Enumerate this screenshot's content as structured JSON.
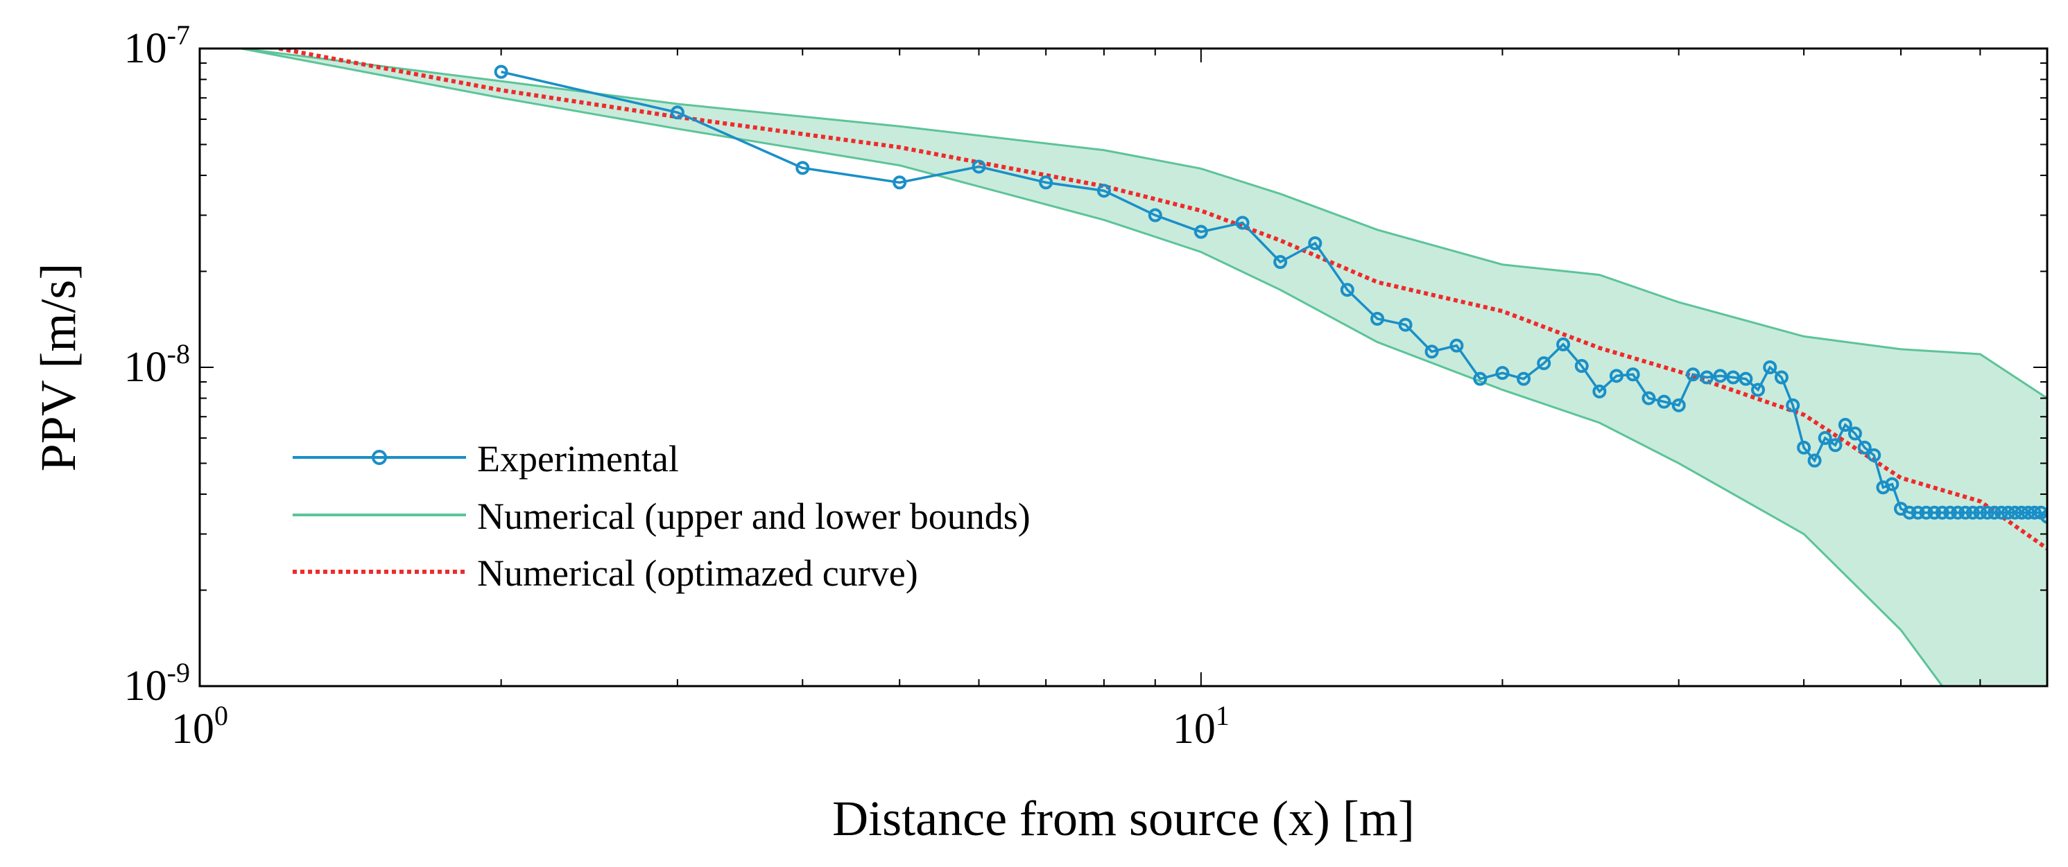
{
  "chart_data": {
    "type": "line",
    "title": "",
    "xlabel": "Distance from source (x) [m]",
    "ylabel": "PPV [m/s]",
    "xscale": "log",
    "yscale": "log",
    "xlim": [
      1,
      70
    ],
    "ylim": [
      1e-09,
      1e-07
    ],
    "x_ticks": [
      {
        "value": 1,
        "base": "10",
        "exp": "0"
      },
      {
        "value": 10,
        "base": "10",
        "exp": "1"
      }
    ],
    "y_ticks": [
      {
        "value": 1e-07,
        "base": "10",
        "exp": "-7"
      },
      {
        "value": 1e-08,
        "base": "10",
        "exp": "-8"
      },
      {
        "value": 1e-09,
        "base": "10",
        "exp": "-9"
      }
    ],
    "legend_position": "bottom-left",
    "series": [
      {
        "name": "Experimental",
        "role": "experimental",
        "color": "#1a8fc7",
        "x": [
          2,
          3,
          4,
          5,
          6,
          7,
          8,
          9,
          10,
          11,
          12,
          13,
          14,
          15,
          16,
          17,
          18,
          19,
          20,
          21,
          22,
          23,
          24,
          25,
          26,
          27,
          28,
          29,
          30,
          31,
          32,
          33,
          34,
          35,
          36,
          37,
          38,
          39,
          40,
          41,
          42,
          43,
          44,
          45,
          46,
          47,
          48,
          49,
          50,
          51,
          52,
          53,
          54,
          55,
          56,
          57,
          58,
          59,
          60,
          61,
          62,
          63,
          64,
          65,
          66,
          67,
          68,
          69,
          70
        ],
        "y": [
          8.45e-08,
          6.3e-08,
          4.22e-08,
          3.8e-08,
          4.26e-08,
          3.8e-08,
          3.58e-08,
          3e-08,
          2.66e-08,
          2.84e-08,
          2.14e-08,
          2.45e-08,
          1.75e-08,
          1.42e-08,
          1.36e-08,
          1.12e-08,
          1.17e-08,
          9.2e-09,
          9.6e-09,
          9.2e-09,
          1.03e-08,
          1.18e-08,
          1.01e-08,
          8.4e-09,
          9.4e-09,
          9.5e-09,
          8e-09,
          7.8e-09,
          7.6e-09,
          9.5e-09,
          9.3e-09,
          9.4e-09,
          9.3e-09,
          9.2e-09,
          8.5e-09,
          1e-08,
          9.3e-09,
          7.6e-09,
          5.6e-09,
          5.1e-09,
          6e-09,
          5.7e-09,
          6.6e-09,
          6.2e-09,
          5.6e-09,
          5.3e-09,
          4.2e-09,
          4.3e-09,
          3.6e-09,
          3.5e-09,
          3.5e-09,
          3.5e-09,
          3.5e-09,
          3.5e-09,
          3.5e-09,
          3.5e-09,
          3.5e-09,
          3.5e-09,
          3.5e-09,
          3.5e-09,
          3.5e-09,
          3.5e-09,
          3.5e-09,
          3.5e-09,
          3.5e-09,
          3.5e-09,
          3.5e-09,
          3.5e-09,
          3.4e-09
        ]
      },
      {
        "name": "Numerical (upper and lower bounds)",
        "role": "bounds",
        "color": "#5cc498",
        "fill": "#c9ebdc",
        "upper": {
          "x": [
            1.1,
            2,
            3,
            5,
            8,
            10,
            12,
            15,
            20,
            25,
            30,
            40,
            50,
            60,
            70
          ],
          "y": [
            1e-07,
            7.9e-08,
            6.7e-08,
            5.7e-08,
            4.8e-08,
            4.2e-08,
            3.5e-08,
            2.7e-08,
            2.1e-08,
            1.95e-08,
            1.6e-08,
            1.25e-08,
            1.14e-08,
            1.1e-08,
            8e-09
          ]
        },
        "lower": {
          "x": [
            1.1,
            2,
            3,
            5,
            8,
            10,
            12,
            15,
            20,
            25,
            30,
            40,
            50,
            55
          ],
          "y": [
            1e-07,
            7e-08,
            5.6e-08,
            4.3e-08,
            2.9e-08,
            2.3e-08,
            1.75e-08,
            1.2e-08,
            8.5e-09,
            6.7e-09,
            5e-09,
            3e-09,
            1.5e-09,
            1e-09
          ]
        }
      },
      {
        "name": "Numerical (optimazed curve)",
        "role": "optimized",
        "color": "#ee2b2b",
        "x": [
          1.2,
          2,
          3,
          5,
          8,
          10,
          12,
          15,
          20,
          25,
          30,
          40,
          50,
          60,
          70
        ],
        "y": [
          1e-07,
          7.4e-08,
          6.1e-08,
          4.9e-08,
          3.7e-08,
          3.1e-08,
          2.5e-08,
          1.85e-08,
          1.5e-08,
          1.15e-08,
          9.7e-09,
          7.1e-09,
          4.5e-09,
          3.8e-09,
          2.7e-09
        ]
      }
    ]
  }
}
